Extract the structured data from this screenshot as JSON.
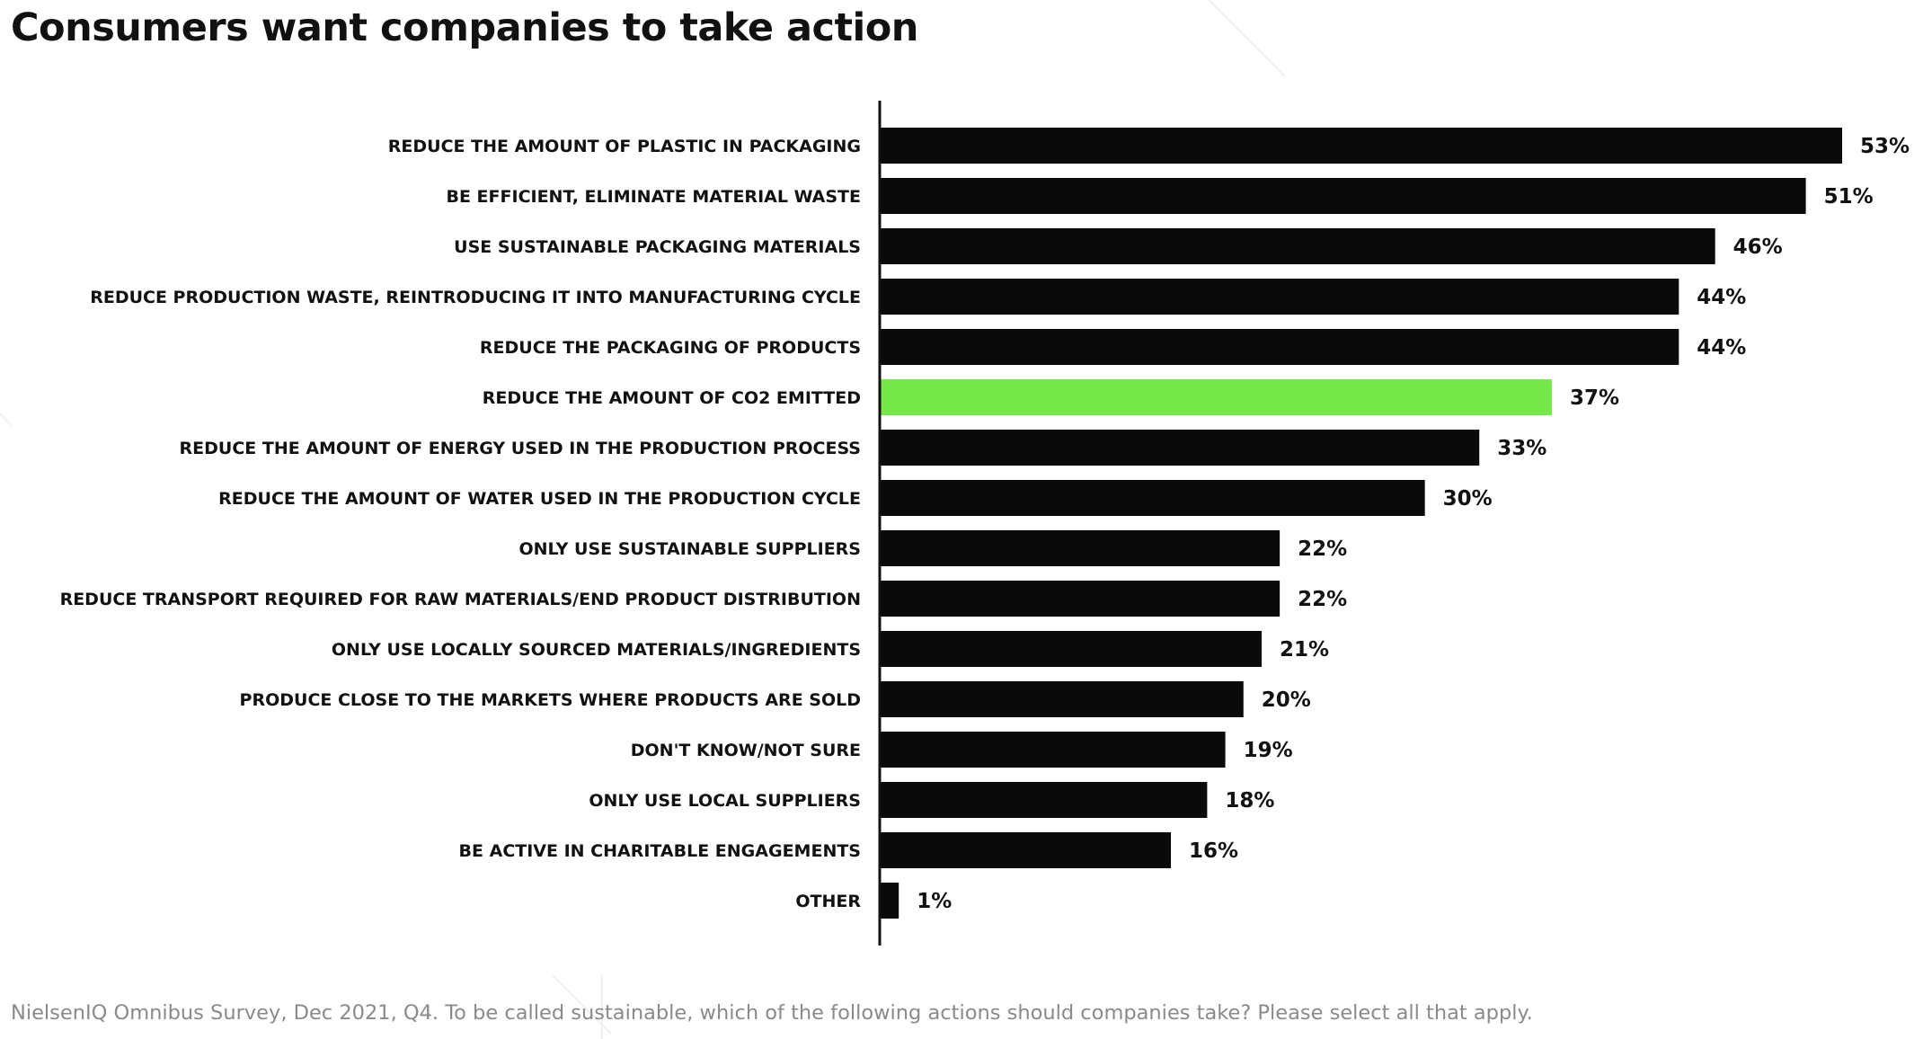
{
  "chart_data": {
    "type": "bar",
    "orientation": "horizontal",
    "title": "Consumers want companies to take action",
    "source_note": "NielsenIQ Omnibus Survey, Dec 2021, Q4. To be called sustainable, which of the following actions should companies take? Please select all that apply.",
    "categories": [
      "REDUCE THE AMOUNT OF PLASTIC IN PACKAGING",
      "BE EFFICIENT, ELIMINATE MATERIAL WASTE",
      "USE SUSTAINABLE PACKAGING MATERIALS",
      "REDUCE PRODUCTION WASTE, REINTRODUCING IT INTO MANUFACTURING CYCLE",
      "REDUCE THE PACKAGING OF PRODUCTS",
      "REDUCE THE AMOUNT OF CO2 EMITTED",
      "REDUCE THE AMOUNT OF ENERGY USED IN THE PRODUCTION PROCESS",
      "REDUCE THE AMOUNT OF WATER USED IN THE PRODUCTION CYCLE",
      "ONLY USE SUSTAINABLE SUPPLIERS",
      "REDUCE TRANSPORT REQUIRED FOR RAW MATERIALS/END PRODUCT DISTRIBUTION",
      "ONLY USE LOCALLY SOURCED MATERIALS/INGREDIENTS",
      "PRODUCE CLOSE TO THE MARKETS WHERE PRODUCTS ARE SOLD",
      "DON'T KNOW/NOT SURE",
      "ONLY USE LOCAL SUPPLIERS",
      "BE ACTIVE IN CHARITABLE ENGAGEMENTS",
      "OTHER"
    ],
    "values": [
      53,
      51,
      46,
      44,
      44,
      37,
      33,
      30,
      22,
      22,
      21,
      20,
      19,
      18,
      16,
      1
    ],
    "value_labels": [
      "53%",
      "51%",
      "46%",
      "44%",
      "44%",
      "37%",
      "33%",
      "30%",
      "22%",
      "22%",
      "21%",
      "20%",
      "19%",
      "18%",
      "16%",
      "1%"
    ],
    "unit": "%",
    "highlight_index": 5,
    "colors": {
      "bar": "#0a0a0a",
      "highlight": "#77e84a",
      "axis": "#111111"
    },
    "xlim": [
      0,
      53
    ],
    "grid": false,
    "legend": "none"
  }
}
